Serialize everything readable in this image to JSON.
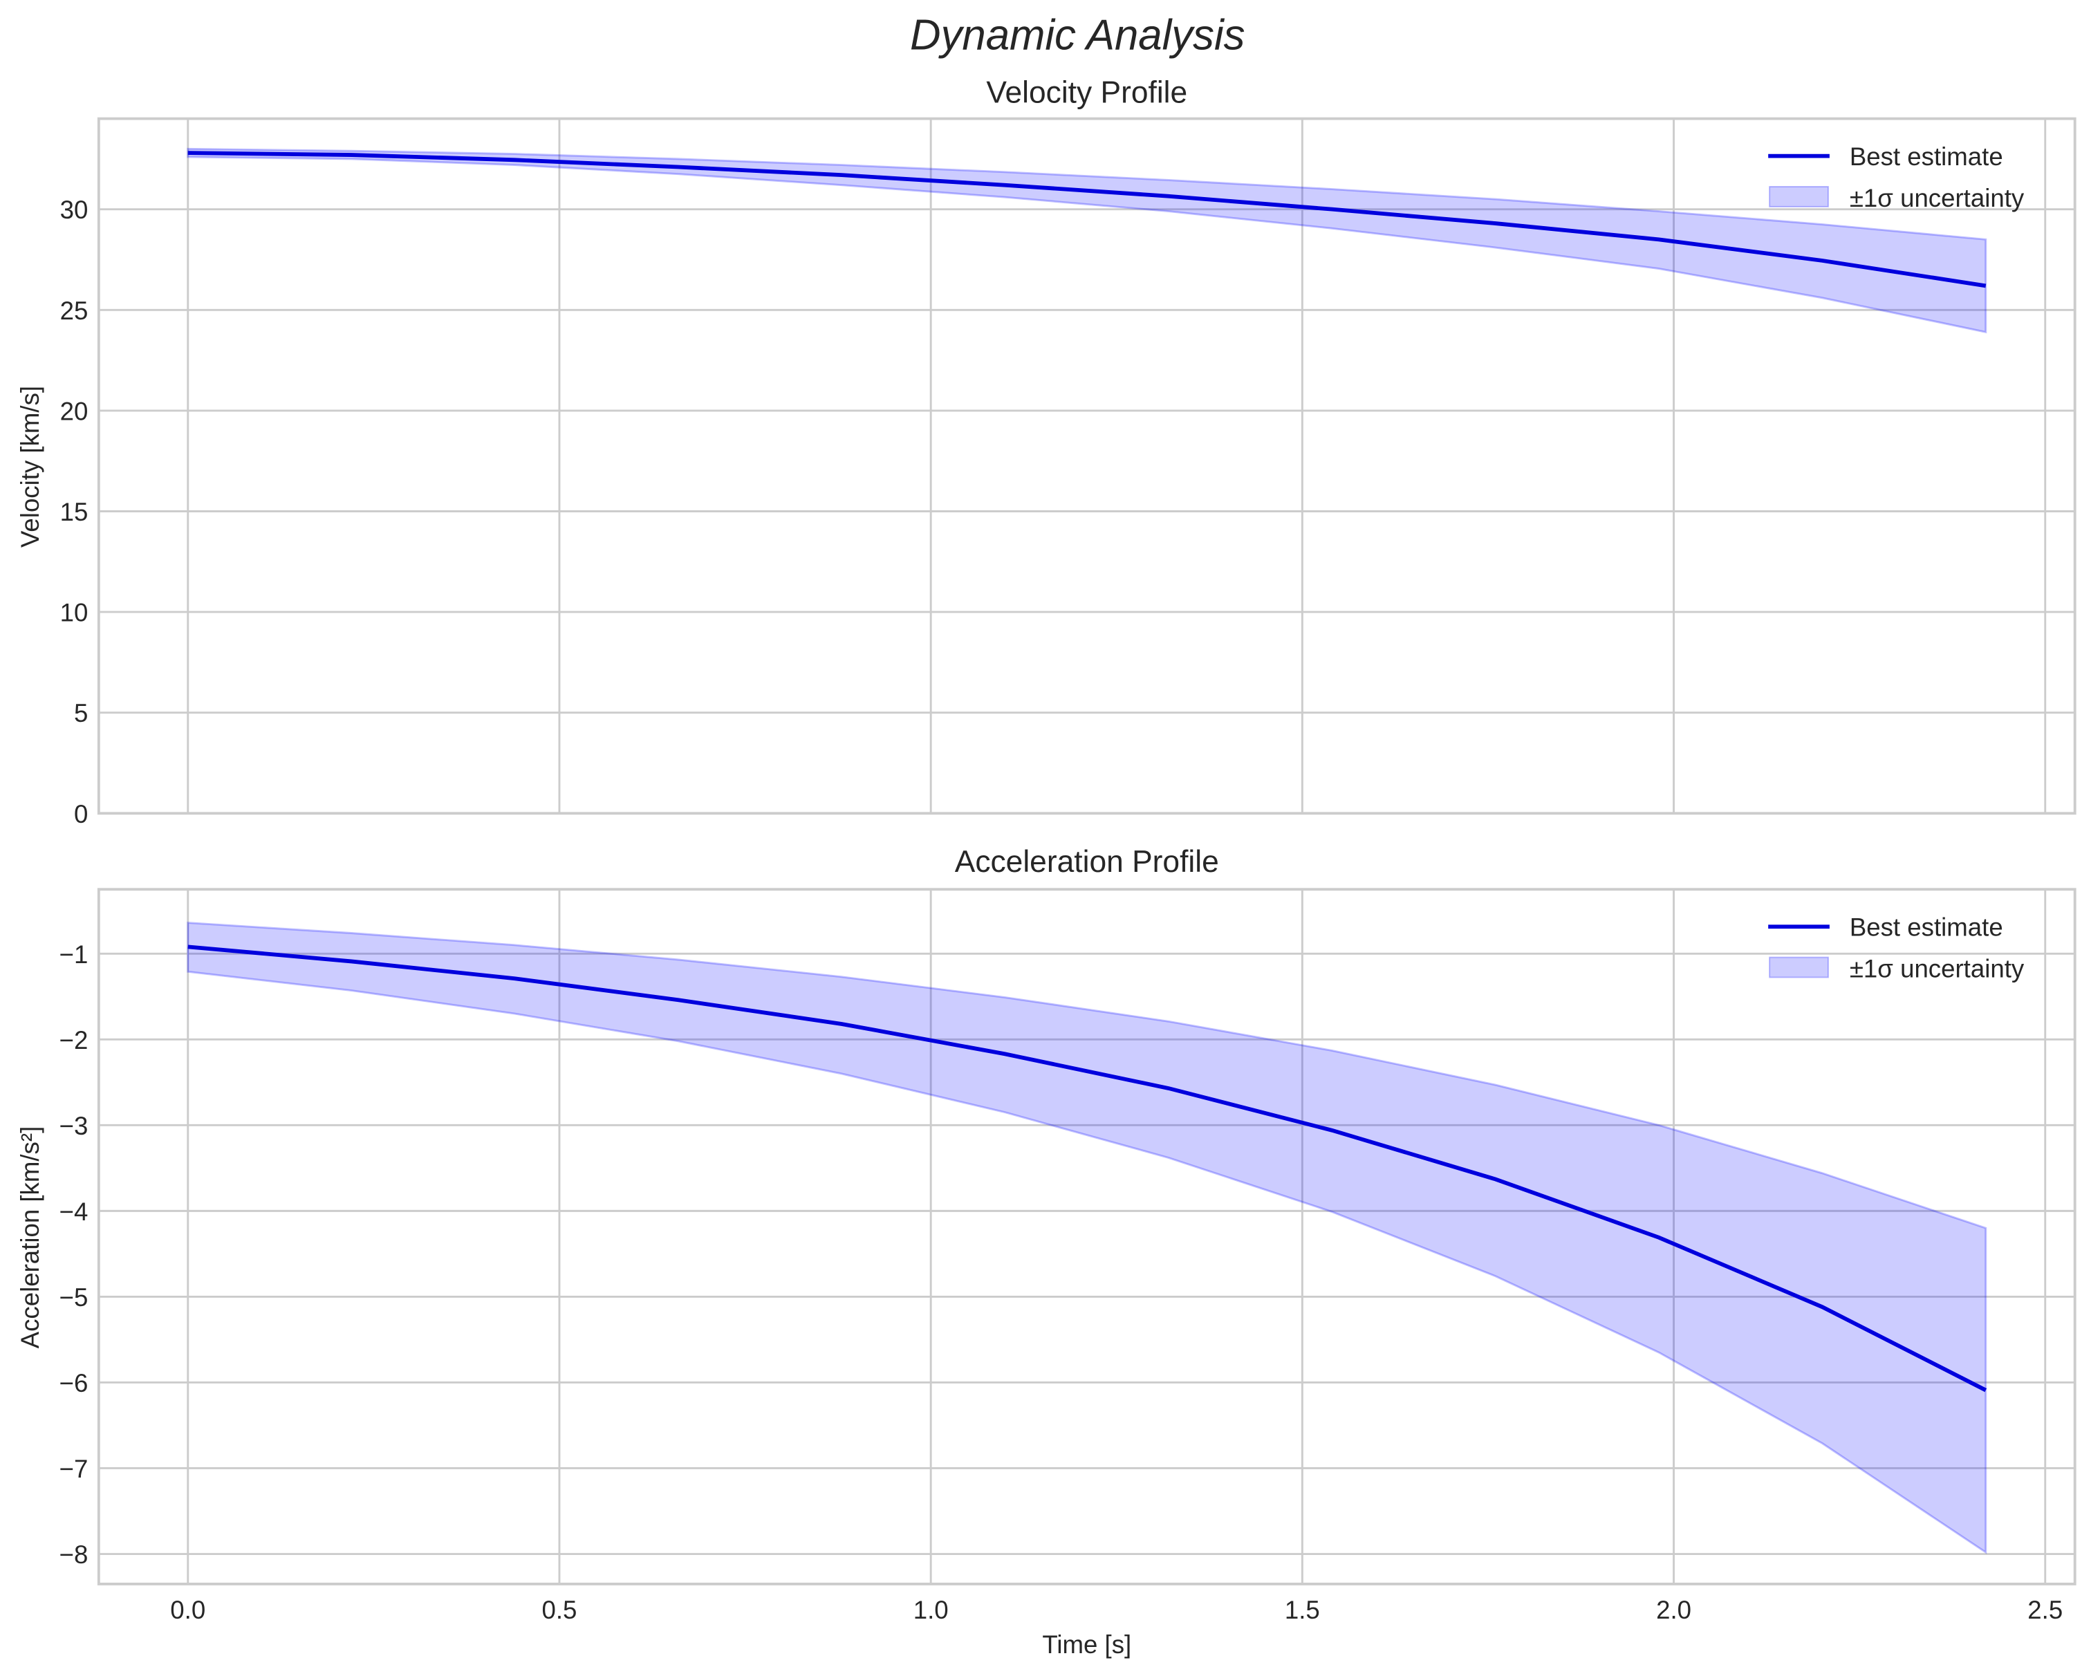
{
  "figure": {
    "suptitle": "Dynamic Analysis"
  },
  "chart_data": [
    {
      "type": "line",
      "title": "Velocity Profile",
      "xlabel": "",
      "ylabel": "Velocity [km/s]",
      "xlim": [
        -0.12,
        2.54
      ],
      "ylim": [
        0,
        34.5
      ],
      "xticks": [
        "0.0",
        "0.5",
        "1.0",
        "1.5",
        "2.0",
        "2.5"
      ],
      "xtick_values": [
        0,
        0.5,
        1.0,
        1.5,
        2.0,
        2.5
      ],
      "yticks": [
        "0",
        "5",
        "10",
        "15",
        "20",
        "25",
        "30"
      ],
      "ytick_values": [
        0,
        5,
        10,
        15,
        20,
        25,
        30
      ],
      "grid": true,
      "legend": {
        "position": "upper right",
        "entries": [
          "Best estimate",
          "±1σ uncertainty"
        ]
      },
      "x": [
        0.0,
        0.22,
        0.44,
        0.66,
        0.88,
        1.1,
        1.32,
        1.54,
        1.76,
        1.98,
        2.2,
        2.42
      ],
      "series": [
        {
          "name": "Best estimate",
          "color": "#0000dd",
          "values": [
            32.8,
            32.7,
            32.45,
            32.1,
            31.7,
            31.2,
            30.65,
            30.0,
            29.3,
            28.5,
            27.45,
            26.2
          ]
        },
        {
          "name": "±1σ uncertainty (upper)",
          "color": "#8080ff",
          "values": [
            33.0,
            32.9,
            32.75,
            32.5,
            32.2,
            31.85,
            31.45,
            31.0,
            30.5,
            29.9,
            29.25,
            28.5
          ]
        },
        {
          "name": "±1σ uncertainty (lower)",
          "color": "#8080ff",
          "values": [
            32.6,
            32.5,
            32.2,
            31.75,
            31.2,
            30.6,
            29.9,
            29.05,
            28.1,
            27.05,
            25.6,
            23.9
          ]
        }
      ]
    },
    {
      "type": "line",
      "title": "Acceleration Profile",
      "xlabel": "Time [s]",
      "ylabel": "Acceleration [km/s²]",
      "xlim": [
        -0.12,
        2.54
      ],
      "ylim": [
        -8.35,
        -0.25
      ],
      "xticks": [
        "0.0",
        "0.5",
        "1.0",
        "1.5",
        "2.0",
        "2.5"
      ],
      "xtick_values": [
        0,
        0.5,
        1.0,
        1.5,
        2.0,
        2.5
      ],
      "yticks": [
        "−1",
        "−2",
        "−3",
        "−4",
        "−5",
        "−6",
        "−7",
        "−8"
      ],
      "ytick_values": [
        -1,
        -2,
        -3,
        -4,
        -5,
        -6,
        -7,
        -8
      ],
      "grid": true,
      "legend": {
        "position": "upper right",
        "entries": [
          "Best estimate",
          "±1σ uncertainty"
        ]
      },
      "x": [
        0.0,
        0.22,
        0.44,
        0.66,
        0.88,
        1.1,
        1.32,
        1.54,
        1.76,
        1.98,
        2.2,
        2.42
      ],
      "series": [
        {
          "name": "Best estimate",
          "color": "#0000dd",
          "values": [
            -0.92,
            -1.09,
            -1.29,
            -1.54,
            -1.82,
            -2.17,
            -2.57,
            -3.06,
            -3.63,
            -4.31,
            -5.12,
            -6.09
          ]
        },
        {
          "name": "±1σ uncertainty (upper)",
          "color": "#8080ff",
          "values": [
            -0.64,
            -0.76,
            -0.9,
            -1.07,
            -1.27,
            -1.51,
            -1.79,
            -2.13,
            -2.53,
            -3.0,
            -3.56,
            -4.2
          ]
        },
        {
          "name": "±1σ uncertainty (lower)",
          "color": "#8080ff",
          "values": [
            -1.21,
            -1.43,
            -1.7,
            -2.02,
            -2.4,
            -2.85,
            -3.38,
            -4.01,
            -4.76,
            -5.65,
            -6.71,
            -7.98
          ]
        }
      ]
    }
  ]
}
